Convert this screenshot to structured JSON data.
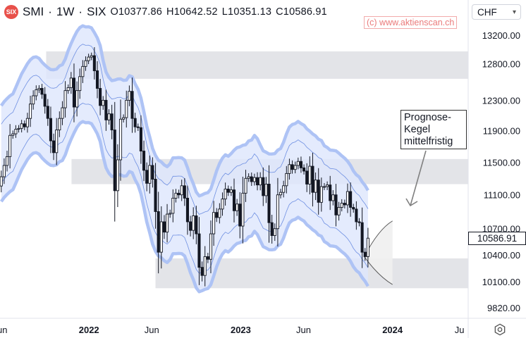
{
  "header": {
    "symbol": "SMI",
    "interval": "1W",
    "exchange": "SIX",
    "open_label": "O10377.86",
    "high_label": "H10642.52",
    "low_label": "L10351.13",
    "close_label": "C10586.91",
    "separator": "·"
  },
  "watermark": "(c) www.aktienscan.ch",
  "currency_selector": {
    "value": "CHF"
  },
  "current_price_label": "10586.91",
  "annotation": {
    "lines": [
      "Prognose-",
      "Kegel",
      "mittelfristig"
    ]
  },
  "icons": {
    "logo": "six-swiss-exchange-logo",
    "settings": "gear-icon",
    "dropdown": "chevron-down-icon"
  },
  "colors": {
    "candle": "#131722",
    "band_fill": "#dde6fd",
    "band_outer": "#aec3f5",
    "band_inner": "#6e8fe2",
    "zone": "#e3e4e8",
    "annotation_arrow": "#808080",
    "watermark": "#ea7b7b"
  },
  "chart_data": {
    "type": "candlestick",
    "y_axis": {
      "scale": "log",
      "ticks": [
        "13200.00",
        "12800.00",
        "12300.00",
        "11900.00",
        "11500.00",
        "11100.00",
        "10700.00",
        "10400.00",
        "10100.00",
        "9820.00"
      ]
    },
    "x_axis": {
      "ticks": [
        "Jun",
        "2022",
        "Jun",
        "2023",
        "Jun",
        "2024",
        "Ju"
      ]
    },
    "x_range": [
      "2021-06-01",
      "2024-07-01"
    ],
    "support_resistance_zones": [
      {
        "from": "2021-09-20",
        "to": "2024-07-01",
        "low": 12590,
        "high": 12970
      },
      {
        "from": "2021-11-20",
        "to": "2024-07-01",
        "low": 11230,
        "high": 11540
      },
      {
        "from": "2022-06-10",
        "to": "2024-07-01",
        "low": 10030,
        "high": 10360
      }
    ],
    "forecast_cone": {
      "start": "2023-10-25",
      "start_price": 10380,
      "end": "2024-01-01",
      "upper": 10790,
      "lower": 10070
    },
    "weekly_closes": [
      [
        "2021-06-04",
        11320
      ],
      [
        "2021-06-11",
        11460
      ],
      [
        "2021-06-18",
        11570
      ],
      [
        "2021-06-25",
        11840
      ],
      [
        "2021-07-02",
        11860
      ],
      [
        "2021-07-09",
        11920
      ],
      [
        "2021-07-16",
        11930
      ],
      [
        "2021-07-23",
        11990
      ],
      [
        "2021-07-30",
        11950
      ],
      [
        "2021-08-06",
        12060
      ],
      [
        "2021-08-13",
        12250
      ],
      [
        "2021-08-20",
        12360
      ],
      [
        "2021-08-27",
        12440
      ],
      [
        "2021-09-03",
        12460
      ],
      [
        "2021-09-10",
        12380
      ],
      [
        "2021-09-17",
        12220
      ],
      [
        "2021-09-24",
        12060
      ],
      [
        "2021-10-01",
        11770
      ],
      [
        "2021-10-08",
        11620
      ],
      [
        "2021-10-15",
        11910
      ],
      [
        "2021-10-22",
        12060
      ],
      [
        "2021-10-29",
        12200
      ],
      [
        "2021-11-05",
        12430
      ],
      [
        "2021-11-12",
        12470
      ],
      [
        "2021-11-19",
        12600
      ],
      [
        "2021-11-26",
        12210
      ],
      [
        "2021-12-03",
        12430
      ],
      [
        "2021-12-10",
        12620
      ],
      [
        "2021-12-17",
        12760
      ],
      [
        "2021-12-24",
        12840
      ],
      [
        "2021-12-31",
        12890
      ],
      [
        "2022-01-07",
        12910
      ],
      [
        "2022-01-14",
        12700
      ],
      [
        "2022-01-21",
        12460
      ],
      [
        "2022-01-28",
        12230
      ],
      [
        "2022-02-04",
        12300
      ],
      [
        "2022-02-11",
        12040
      ],
      [
        "2022-02-18",
        12120
      ],
      [
        "2022-02-25",
        11910
      ],
      [
        "2022-03-04",
        11150
      ],
      [
        "2022-03-11",
        11530
      ],
      [
        "2022-03-18",
        12050
      ],
      [
        "2022-03-25",
        12070
      ],
      [
        "2022-04-01",
        12300
      ],
      [
        "2022-04-08",
        12420
      ],
      [
        "2022-04-15",
        12060
      ],
      [
        "2022-04-22",
        11950
      ],
      [
        "2022-04-29",
        11940
      ],
      [
        "2022-05-06",
        11640
      ],
      [
        "2022-05-13",
        11400
      ],
      [
        "2022-05-20",
        11240
      ],
      [
        "2022-05-27",
        11460
      ],
      [
        "2022-06-03",
        11290
      ],
      [
        "2022-06-10",
        10900
      ],
      [
        "2022-06-17",
        10430
      ],
      [
        "2022-06-24",
        10780
      ],
      [
        "2022-07-01",
        10660
      ],
      [
        "2022-07-08",
        10870
      ],
      [
        "2022-07-15",
        10880
      ],
      [
        "2022-07-22",
        11060
      ],
      [
        "2022-07-29",
        11120
      ],
      [
        "2022-08-05",
        11100
      ],
      [
        "2022-08-12",
        11210
      ],
      [
        "2022-08-19",
        11060
      ],
      [
        "2022-08-26",
        10780
      ],
      [
        "2022-09-02",
        10680
      ],
      [
        "2022-09-09",
        10850
      ],
      [
        "2022-09-16",
        10640
      ],
      [
        "2022-09-23",
        10260
      ],
      [
        "2022-09-30",
        10170
      ],
      [
        "2022-10-07",
        10380
      ],
      [
        "2022-10-14",
        10350
      ],
      [
        "2022-10-21",
        10640
      ],
      [
        "2022-10-28",
        10890
      ],
      [
        "2022-11-04",
        10830
      ],
      [
        "2022-11-11",
        10930
      ],
      [
        "2022-11-18",
        11050
      ],
      [
        "2022-11-25",
        11170
      ],
      [
        "2022-12-02",
        11130
      ],
      [
        "2022-12-09",
        11160
      ],
      [
        "2022-12-16",
        10910
      ],
      [
        "2022-12-23",
        10990
      ],
      [
        "2022-12-30",
        10730
      ],
      [
        "2023-01-06",
        11120
      ],
      [
        "2023-01-13",
        11300
      ],
      [
        "2023-01-20",
        11320
      ],
      [
        "2023-01-27",
        11260
      ],
      [
        "2023-02-03",
        11310
      ],
      [
        "2023-02-10",
        11220
      ],
      [
        "2023-02-17",
        11310
      ],
      [
        "2023-02-24",
        11090
      ],
      [
        "2023-03-03",
        11230
      ],
      [
        "2023-03-10",
        10770
      ],
      [
        "2023-03-17",
        10620
      ],
      [
        "2023-03-24",
        10700
      ],
      [
        "2023-03-31",
        11100
      ],
      [
        "2023-04-07",
        11130
      ],
      [
        "2023-04-14",
        11210
      ],
      [
        "2023-04-21",
        11360
      ],
      [
        "2023-04-28",
        11470
      ],
      [
        "2023-05-05",
        11410
      ],
      [
        "2023-05-12",
        11460
      ],
      [
        "2023-05-19",
        11510
      ],
      [
        "2023-05-26",
        11430
      ],
      [
        "2023-06-02",
        11390
      ],
      [
        "2023-06-09",
        11230
      ],
      [
        "2023-06-16",
        11450
      ],
      [
        "2023-06-23",
        11130
      ],
      [
        "2023-06-30",
        11280
      ],
      [
        "2023-07-07",
        11010
      ],
      [
        "2023-07-14",
        11200
      ],
      [
        "2023-07-21",
        11200
      ],
      [
        "2023-07-28",
        11220
      ],
      [
        "2023-08-04",
        11030
      ],
      [
        "2023-08-11",
        11100
      ],
      [
        "2023-08-18",
        10860
      ],
      [
        "2023-08-25",
        10950
      ],
      [
        "2023-09-01",
        11000
      ],
      [
        "2023-09-08",
        10980
      ],
      [
        "2023-09-15",
        11140
      ],
      [
        "2023-09-22",
        10950
      ],
      [
        "2023-09-29",
        10930
      ],
      [
        "2023-10-06",
        10780
      ],
      [
        "2023-10-13",
        10770
      ],
      [
        "2023-10-20",
        10430
      ],
      [
        "2023-10-27",
        10380
      ],
      [
        "2023-11-03",
        10590
      ]
    ]
  }
}
